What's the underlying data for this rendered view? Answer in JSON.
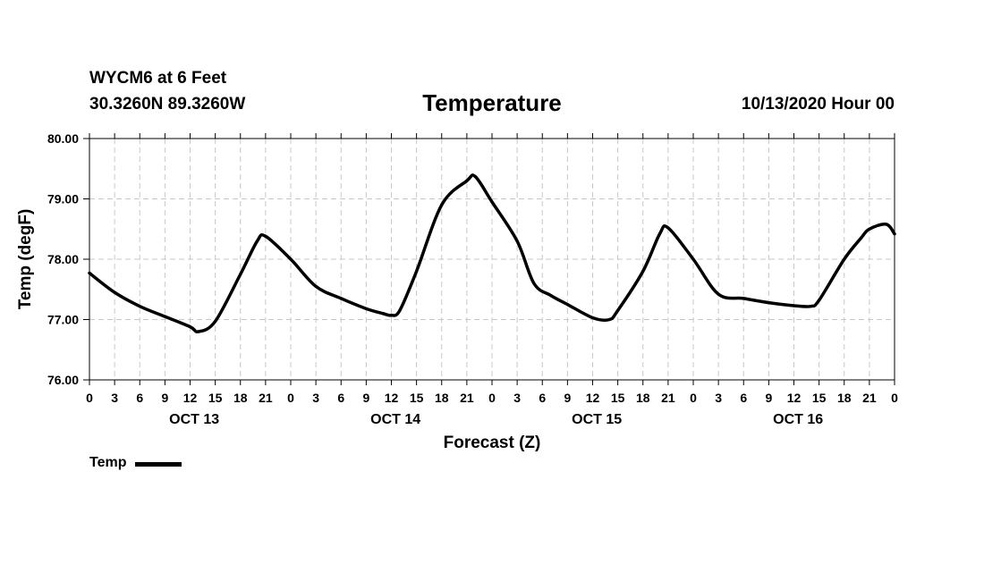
{
  "header": {
    "station": "WYCM6 at 6 Feet",
    "coords": "30.3260N 89.3260W",
    "title": "Temperature",
    "run_time": "10/13/2020 Hour 00"
  },
  "legend": {
    "label": "Temp"
  },
  "chart_data": {
    "type": "line",
    "title": "Temperature",
    "xlabel": "Forecast (Z)",
    "ylabel": "Temp (degF)",
    "x_unit": "forecast hour",
    "xlim": [
      0,
      96
    ],
    "ylim": [
      76,
      80
    ],
    "grid": true,
    "y_ticks": [
      "76.00",
      "77.00",
      "78.00",
      "79.00",
      "80.00"
    ],
    "x_tick_labels": [
      "0",
      "3",
      "6",
      "9",
      "12",
      "15",
      "18",
      "21",
      "0",
      "3",
      "6",
      "9",
      "12",
      "15",
      "18",
      "21",
      "0",
      "3",
      "6",
      "9",
      "12",
      "15",
      "18",
      "21",
      "0",
      "3",
      "6",
      "9",
      "12",
      "15",
      "18",
      "21",
      "0"
    ],
    "day_labels": [
      "OCT 13",
      "OCT 14",
      "OCT 15",
      "OCT 16"
    ],
    "legend": "bottom-left",
    "series": [
      {
        "name": "Temp",
        "color": "#000000",
        "x": [
          0,
          3,
          6,
          9,
          12,
          13,
          15,
          18,
          20,
          21,
          24,
          27,
          30,
          33,
          35,
          36,
          37,
          39,
          42,
          45,
          46,
          48,
          51,
          53,
          55,
          57,
          60,
          62,
          63,
          66,
          68,
          69,
          72,
          75,
          78,
          81,
          84,
          86,
          87,
          90,
          92,
          93,
          95,
          96
        ],
        "y": [
          77.77,
          77.45,
          77.22,
          77.05,
          76.88,
          76.8,
          76.97,
          77.75,
          78.3,
          78.38,
          78.0,
          77.55,
          77.35,
          77.18,
          77.1,
          77.07,
          77.15,
          77.8,
          78.9,
          79.3,
          79.37,
          78.95,
          78.3,
          77.6,
          77.4,
          77.25,
          77.03,
          77.0,
          77.15,
          77.8,
          78.42,
          78.52,
          78.0,
          77.42,
          77.35,
          77.28,
          77.23,
          77.22,
          77.32,
          78.0,
          78.35,
          78.5,
          78.58,
          78.42
        ]
      }
    ]
  }
}
